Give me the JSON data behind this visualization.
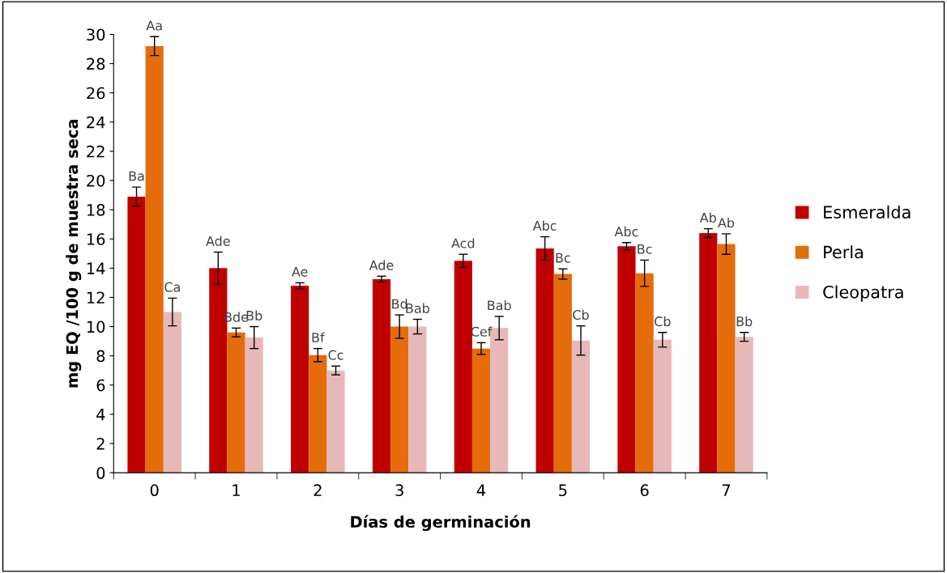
{
  "chart_data": {
    "type": "bar",
    "xlabel": "Días de germinación",
    "ylabel": "mg EQ /100 g de muestra seca",
    "categories": [
      "0",
      "1",
      "2",
      "3",
      "4",
      "5",
      "6",
      "7"
    ],
    "ylim": [
      0,
      30
    ],
    "yticks": [
      0,
      2,
      4,
      6,
      8,
      10,
      12,
      14,
      16,
      18,
      20,
      22,
      24,
      26,
      28,
      30
    ],
    "grid": false,
    "legend": "right",
    "series": [
      {
        "name": "Esmeralda",
        "color": "#c00000",
        "values": [
          18.9,
          14.0,
          12.8,
          13.25,
          14.5,
          15.35,
          15.5,
          16.4
        ],
        "errors": [
          0.65,
          1.1,
          0.2,
          0.2,
          0.45,
          0.8,
          0.25,
          0.3
        ],
        "value_labels": [
          "Ba",
          "Ade",
          "Ae",
          "Ade",
          "Acd",
          "Abc",
          "Abc",
          "Ab"
        ]
      },
      {
        "name": "Perla",
        "color": "#e46c0a",
        "values": [
          29.2,
          9.6,
          8.05,
          10.0,
          8.5,
          13.6,
          13.65,
          15.65
        ],
        "errors": [
          0.65,
          0.3,
          0.45,
          0.8,
          0.4,
          0.35,
          0.9,
          0.7
        ],
        "value_labels": [
          "Aa",
          "Bde",
          "Bf",
          "Bd",
          "Cef",
          "Bc",
          "Bc",
          "Ab"
        ]
      },
      {
        "name": "Cleopatra",
        "color": "#e6b9b8",
        "values": [
          11.0,
          9.25,
          7.0,
          10.0,
          9.9,
          9.05,
          9.1,
          9.3
        ],
        "errors": [
          0.95,
          0.75,
          0.3,
          0.5,
          0.8,
          1.0,
          0.5,
          0.3
        ],
        "value_labels": [
          "Ca",
          "Bb",
          "Cc",
          "Bab",
          "Bab",
          "Cb",
          "Cb",
          "Bb"
        ]
      }
    ]
  }
}
